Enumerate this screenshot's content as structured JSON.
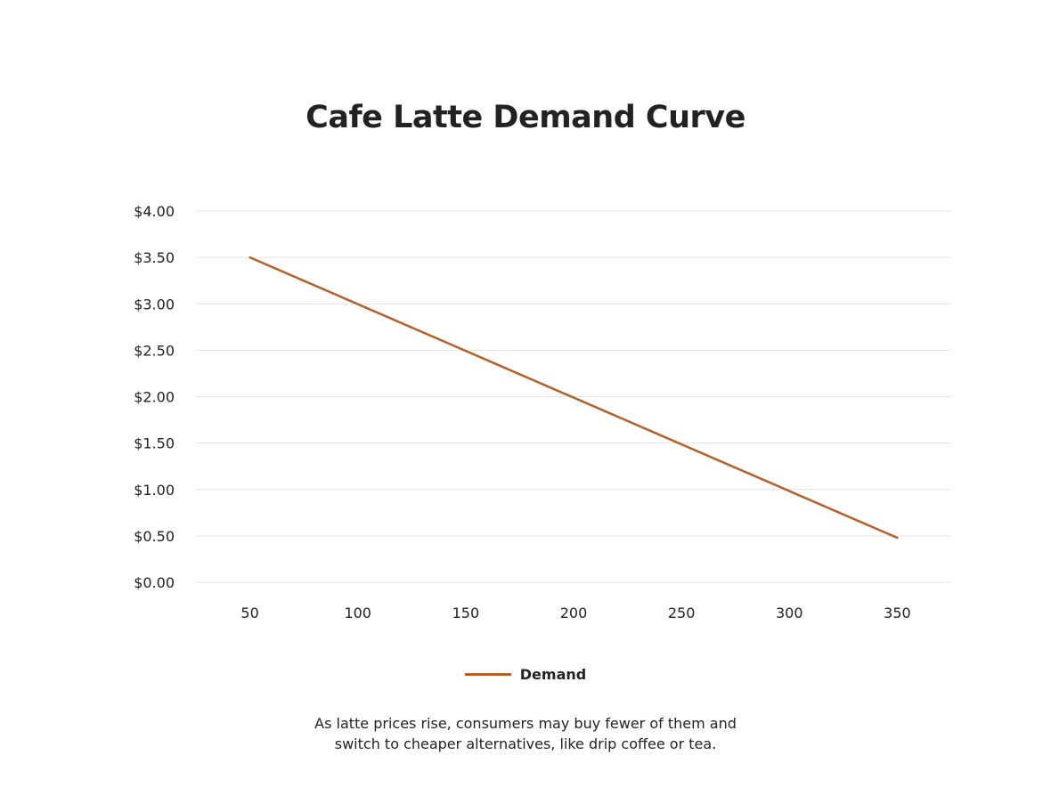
{
  "chart_data": {
    "type": "line",
    "title": "Cafe Latte Demand Curve",
    "xlabel": "",
    "ylabel": "",
    "x": [
      50,
      350
    ],
    "series": [
      {
        "name": "Demand",
        "x": [
          50,
          350
        ],
        "values": [
          3.5,
          0.48
        ],
        "color": "#b5602a"
      }
    ],
    "x_ticks": [
      "50",
      "100",
      "150",
      "200",
      "250",
      "300",
      "350"
    ],
    "y_ticks": [
      "$0.00",
      "$0.50",
      "$1.00",
      "$1.50",
      "$2.00",
      "$2.50",
      "$3.00",
      "$3.50",
      "$4.00"
    ],
    "xlim": [
      25,
      375
    ],
    "ylim": [
      0,
      4
    ],
    "grid": "horizontal",
    "gridline_color": "#e3e3e3",
    "legend_position": "bottom-center"
  },
  "caption": {
    "line1": "As latte prices rise, consumers may buy fewer of them and",
    "line2": "switch to cheaper alternatives, like drip coffee or tea."
  }
}
